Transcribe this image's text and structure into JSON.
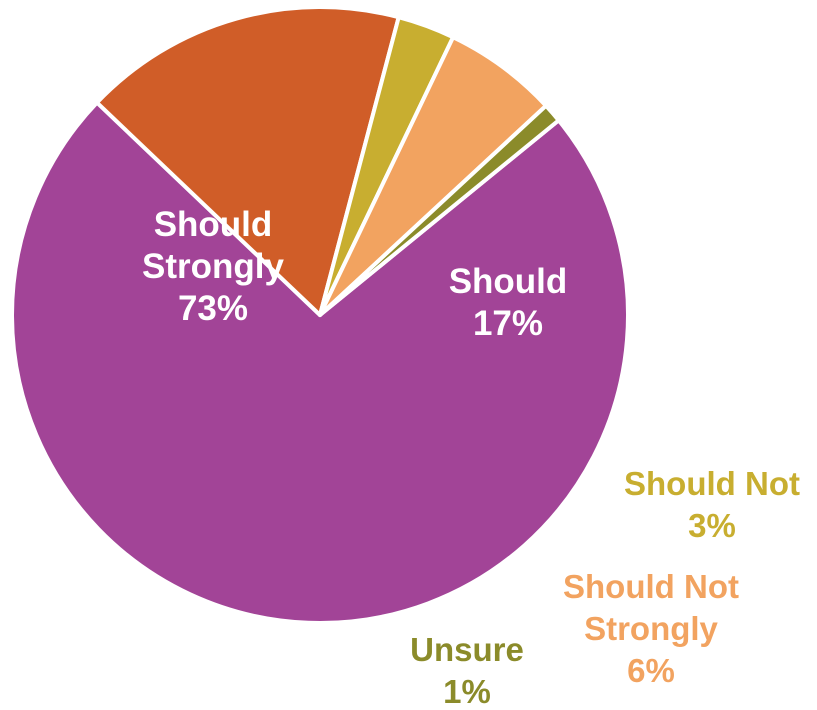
{
  "chart_data": {
    "type": "pie",
    "title": "",
    "slices": [
      {
        "label": [
          "Should",
          "Strongly"
        ],
        "pct_label": "73%",
        "value": 73,
        "color": "#a24497",
        "text_color": "#ffffff"
      },
      {
        "label": [
          "Should"
        ],
        "pct_label": "17%",
        "value": 17,
        "color": "#d05d28",
        "text_color": "#ffffff"
      },
      {
        "label": [
          "Should Not"
        ],
        "pct_label": "3%",
        "value": 3,
        "color": "#c8ae30",
        "text_color": "#c8ae30"
      },
      {
        "label": [
          "Should Not",
          "Strongly"
        ],
        "pct_label": "6%",
        "value": 6,
        "color": "#f2a360",
        "text_color": "#f2a360"
      },
      {
        "label": [
          "Unsure"
        ],
        "pct_label": "1%",
        "value": 1,
        "color": "#8b8b2a",
        "text_color": "#8b8b2a"
      }
    ]
  }
}
